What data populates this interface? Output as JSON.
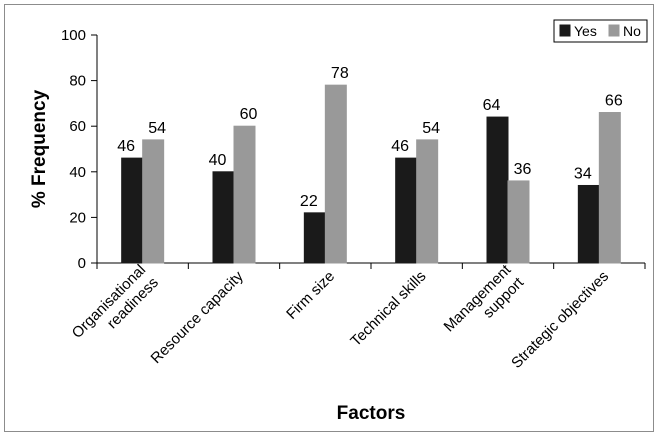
{
  "chart_data": {
    "type": "bar",
    "categories": [
      [
        "Organisational",
        "readiness"
      ],
      [
        "Resource capacity"
      ],
      [
        "Firm size"
      ],
      [
        "Technical skills"
      ],
      [
        "Management",
        "support"
      ],
      [
        "Strategic objectives"
      ]
    ],
    "series": [
      {
        "name": "Yes",
        "color": "#1a1a1a",
        "values": [
          46,
          40,
          22,
          46,
          64,
          34
        ]
      },
      {
        "name": "No",
        "color": "#999999",
        "values": [
          54,
          60,
          78,
          54,
          36,
          66
        ]
      }
    ],
    "xlabel": "Factors",
    "ylabel": "% Frequency",
    "ylim": [
      0,
      100
    ],
    "yticks": [
      0,
      20,
      40,
      60,
      80,
      100
    ],
    "legend_position": "top-right",
    "grid": false
  }
}
